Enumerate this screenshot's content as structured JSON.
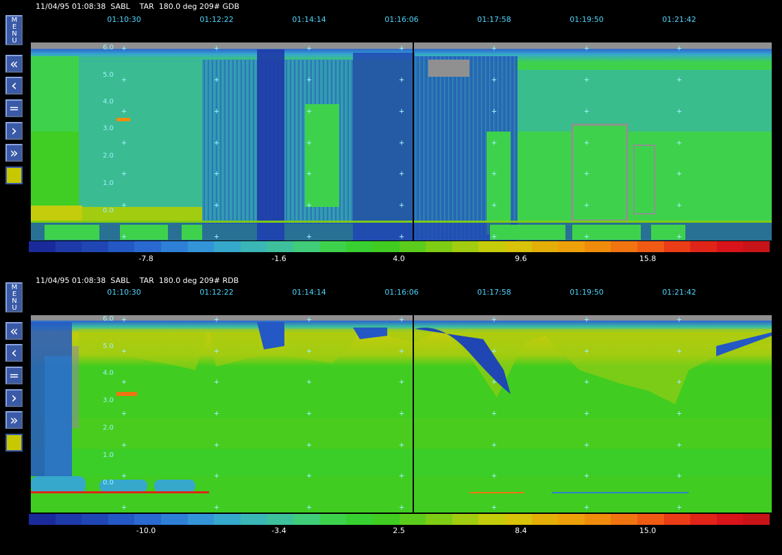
{
  "panels": [
    {
      "header": "11/04/95 01:08:38  SABL    TAR  180.0 deg 209# GDB",
      "time_ticks": [
        "01:10:30",
        "01:12:22",
        "01:14:14",
        "01:16:06",
        "01:17:58",
        "01:19:50",
        "01:21:42"
      ],
      "y_ticks": [
        "6.0",
        "5.0",
        "4.0",
        "3.0",
        "2.0",
        "1.0",
        "0.0"
      ],
      "colorbar_labels": [
        "-7.8",
        "-1.6",
        "4.0",
        "9.6",
        "15.8"
      ]
    },
    {
      "header": "11/04/95 01:08:38  SABL    TAR  180.0 deg 209# RDB",
      "time_ticks": [
        "01:10:30",
        "01:12:22",
        "01:14:14",
        "01:16:06",
        "01:17:58",
        "01:19:50",
        "01:21:42"
      ],
      "y_ticks": [
        "6.0",
        "5.0",
        "4.0",
        "3.0",
        "2.0",
        "1.0",
        "0.0"
      ],
      "colorbar_labels": [
        "-10.0",
        "-3.4",
        "2.5",
        "8.4",
        "15.0"
      ]
    }
  ],
  "toolbar": {
    "menu_label": "MENU",
    "first_label": "«",
    "prev_label": "‹",
    "equal_label": "=",
    "next_label": "›",
    "last_label": "»"
  },
  "colors": {
    "scale": [
      "#1a2a9a",
      "#1e3aa8",
      "#2046b4",
      "#2458c4",
      "#2a6ad0",
      "#2e80d6",
      "#3494d8",
      "#36a8cc",
      "#3ab6b6",
      "#3ec09c",
      "#40cc78",
      "#3ed24c",
      "#38d030",
      "#40cc20",
      "#5ccc1c",
      "#7ecc14",
      "#a2cc10",
      "#c4cc0c",
      "#d8c20a",
      "#e4ae08",
      "#eea00a",
      "#f08c0c",
      "#f07410",
      "#f05a14",
      "#ea3c16",
      "#e02418",
      "#d8141a",
      "#c81418"
    ],
    "background": "#000000",
    "grid_plus": "#9ef0ff",
    "time_tick_text": "#4fd6ff",
    "button_blue": "#3a5aa8",
    "swatch_yellow": "#c8c800"
  },
  "chart_data": [
    {
      "type": "heatmap",
      "title": "11/04/95 01:08:38  SABL    TAR  180.0 deg 209# GDB",
      "x": [
        "01:10:30",
        "01:12:22",
        "01:14:14",
        "01:16:06",
        "01:17:58",
        "01:19:50",
        "01:21:42"
      ],
      "y": [
        0.0,
        1.0,
        2.0,
        3.0,
        4.0,
        5.0,
        6.0
      ],
      "colorbar_ticks": [
        -7.8,
        -1.6,
        4.0,
        9.6,
        15.8
      ]
    },
    {
      "type": "heatmap",
      "title": "11/04/95 01:08:38  SABL    TAR  180.0 deg 209# RDB",
      "x": [
        "01:10:30",
        "01:12:22",
        "01:14:14",
        "01:16:06",
        "01:17:58",
        "01:19:50",
        "01:21:42"
      ],
      "y": [
        0.0,
        1.0,
        2.0,
        3.0,
        4.0,
        5.0,
        6.0
      ],
      "colorbar_ticks": [
        -10.0,
        -3.4,
        2.5,
        8.4,
        15.0
      ]
    }
  ]
}
